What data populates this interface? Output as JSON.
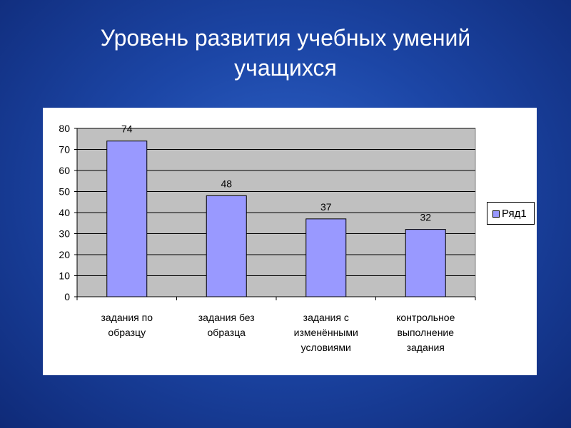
{
  "slide": {
    "title_line1": "Уровень развития учебных умений",
    "title_line2": "учащихся"
  },
  "colors": {
    "background": "#1c46a6",
    "plot_area": "#c0c0c0",
    "bar_fill": "#9999ff",
    "bar_stroke": "#000000",
    "gridline": "#000000"
  },
  "chart_data": {
    "type": "bar",
    "categories": [
      [
        "задания по",
        "образцу"
      ],
      [
        "задания без",
        "образца"
      ],
      [
        "задания с",
        "изменёнными",
        "условиями"
      ],
      [
        "контрольное",
        "выполнение",
        "задания"
      ]
    ],
    "series": [
      {
        "name": "Ряд1",
        "values": [
          74,
          48,
          37,
          32
        ]
      }
    ],
    "ylim": [
      0,
      80
    ],
    "yticks": [
      0,
      10,
      20,
      30,
      40,
      50,
      60,
      70,
      80
    ],
    "grid": true,
    "data_labels": true,
    "legend": "right"
  }
}
